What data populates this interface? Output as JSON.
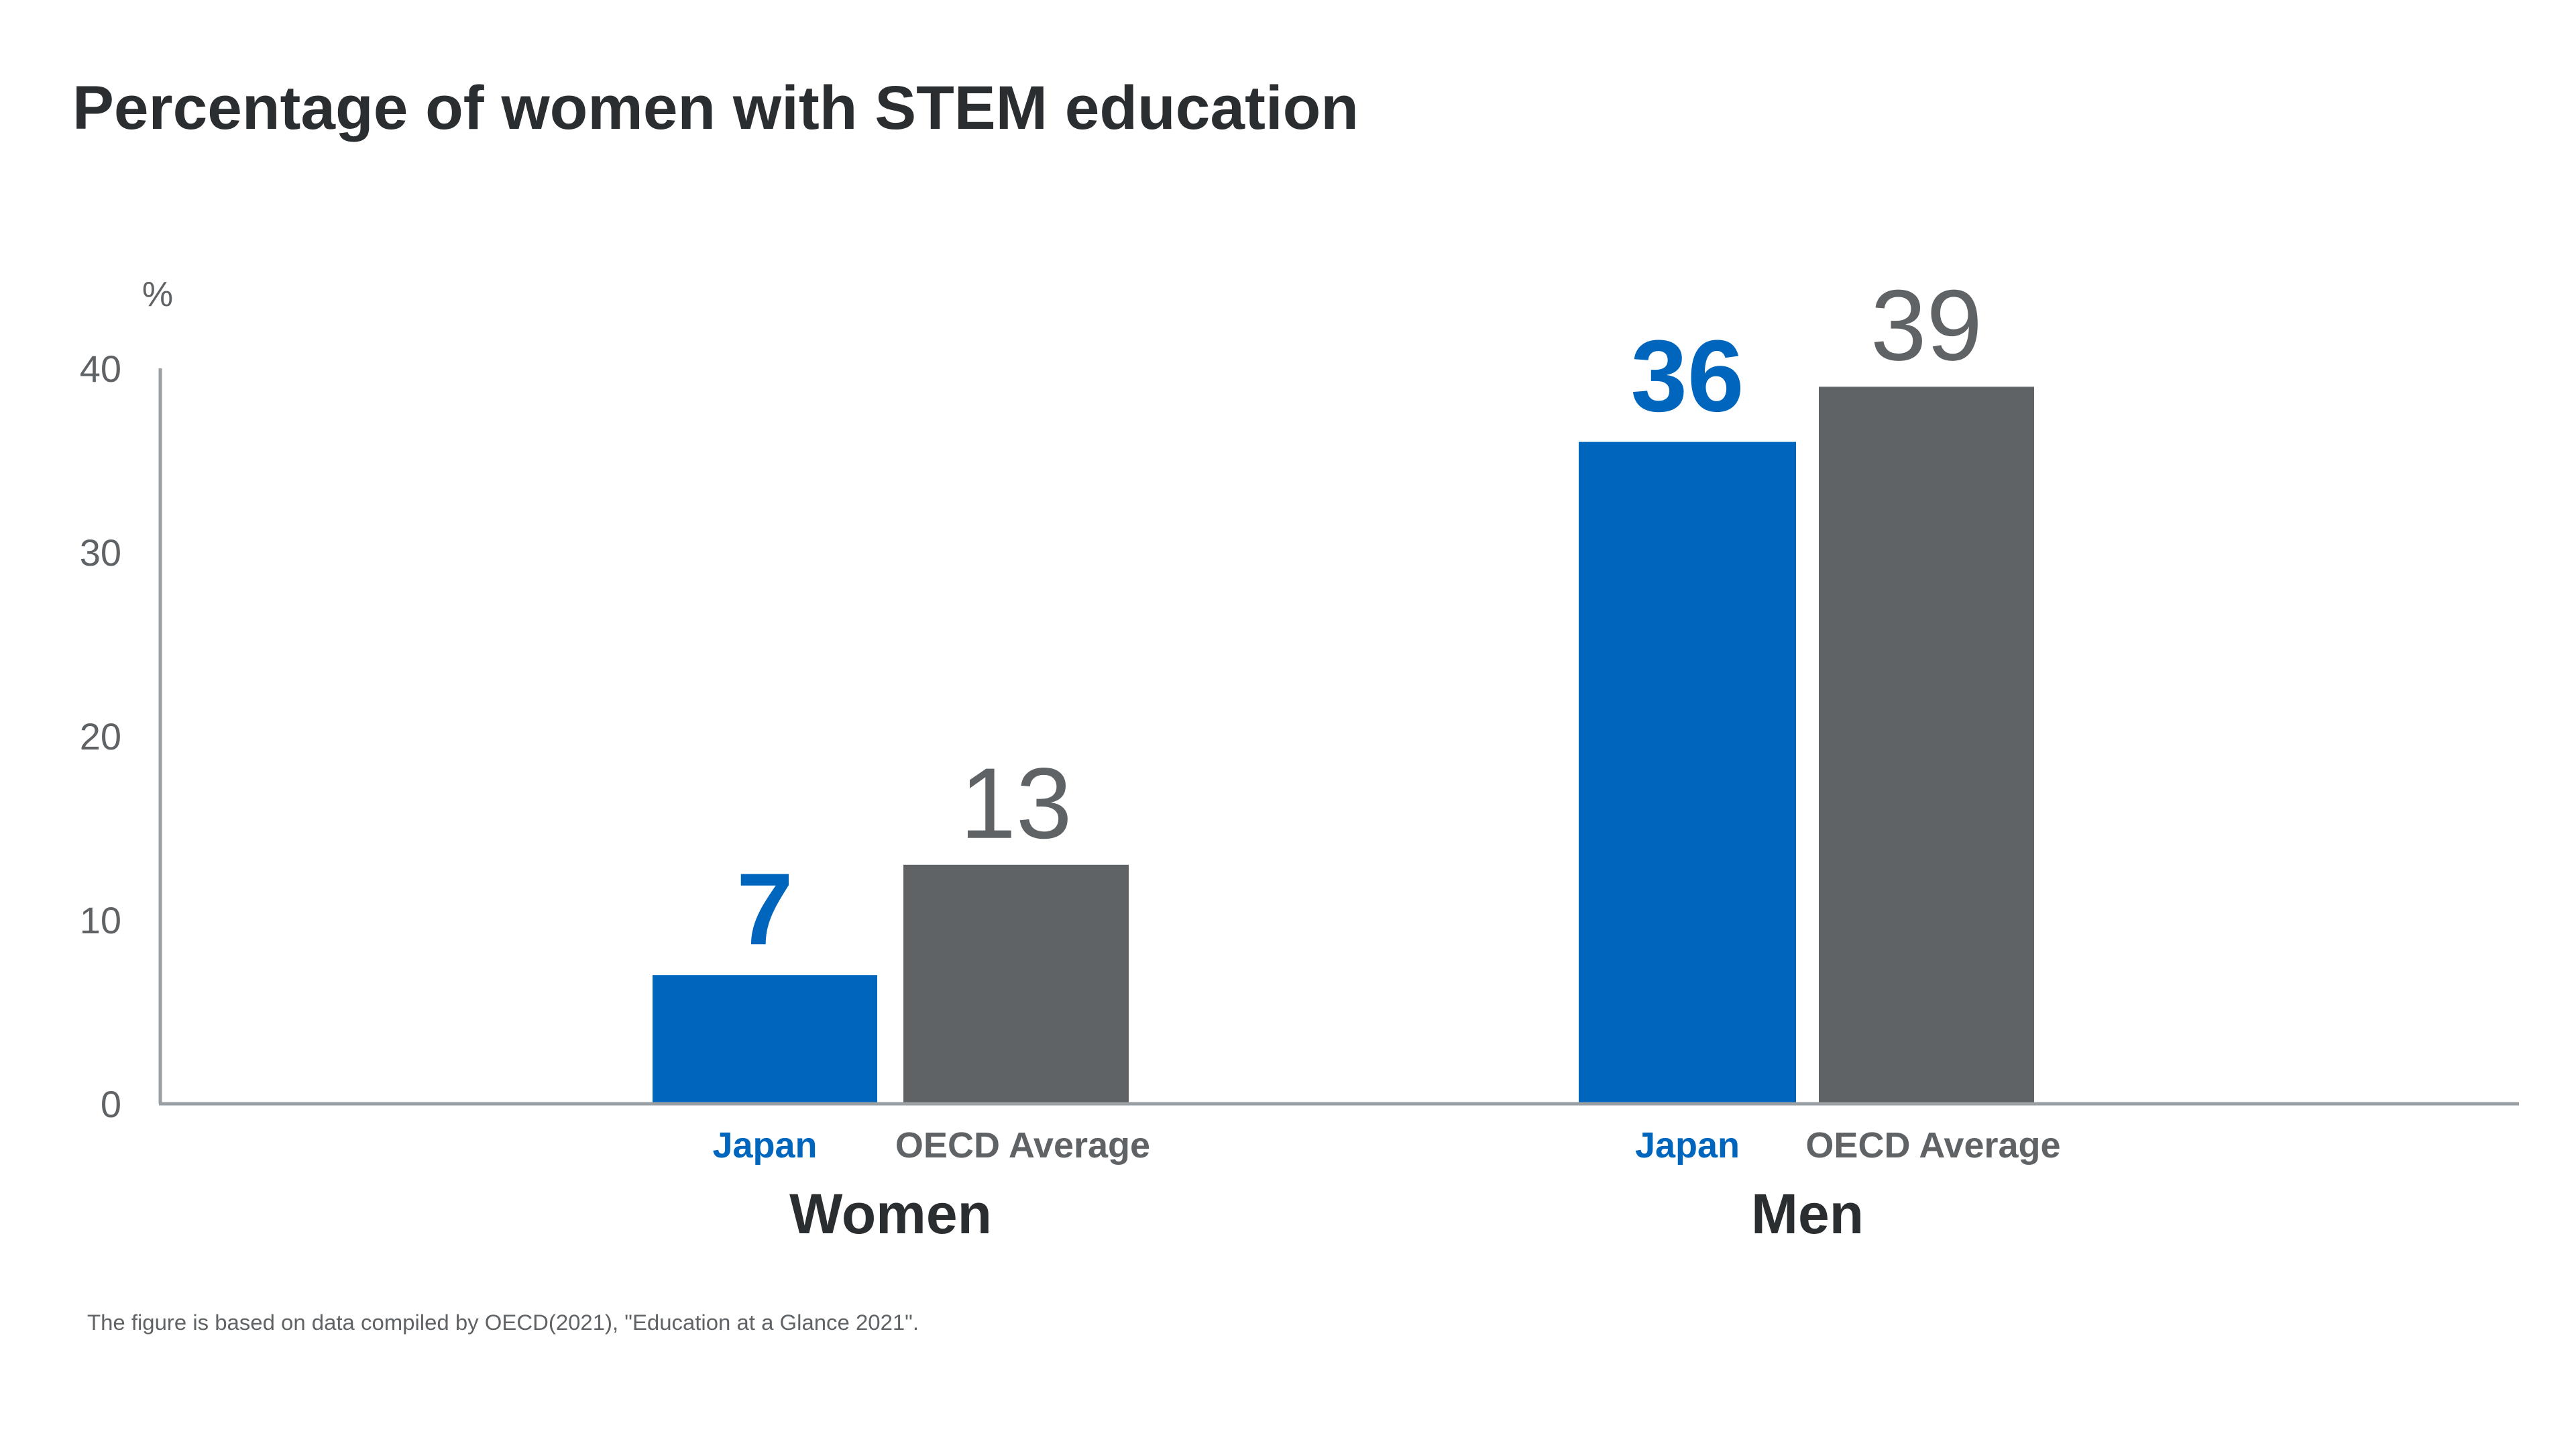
{
  "chart_data": {
    "type": "bar",
    "title": "Percentage of women with STEM education",
    "ylabel": "%",
    "xlabel": "",
    "ylim": [
      0,
      40
    ],
    "yticks": [
      "0",
      "10",
      "20",
      "30",
      "40"
    ],
    "groups": [
      "Women",
      "Men"
    ],
    "series": [
      {
        "name": "Japan",
        "values": [
          7,
          36
        ],
        "labels": [
          "7",
          "36"
        ],
        "color": "#0066BD"
      },
      {
        "name": "OECD Average",
        "values": [
          13,
          39
        ],
        "labels": [
          "13",
          "39"
        ],
        "color": "#5F6366"
      }
    ],
    "grid": false,
    "footnote": "The figure is based on data compiled by OECD(2021), \"Education at a Glance 2021\"."
  }
}
